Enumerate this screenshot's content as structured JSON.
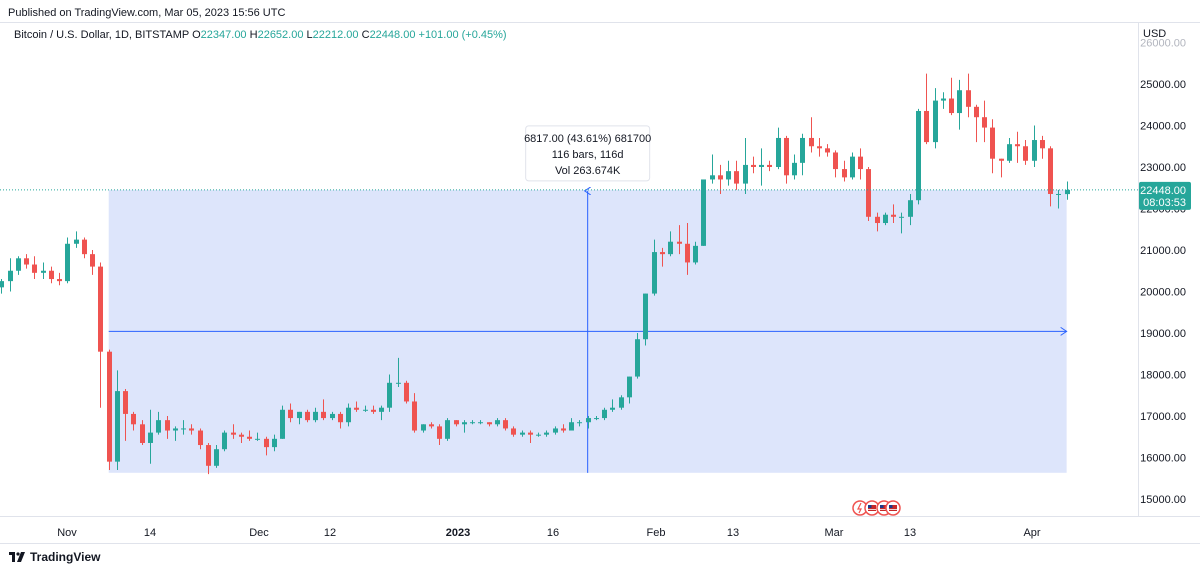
{
  "header": {
    "published": "Published on TradingView.com, Mar 05, 2023 15:56 UTC"
  },
  "legend": {
    "symbol": "Bitcoin / U.S. Dollar, 1D, BITSTAMP",
    "o_label": "O",
    "o": "22347.00",
    "h_label": "H",
    "h": "22652.00",
    "l_label": "L",
    "l": "22212.00",
    "c_label": "C",
    "c": "22448.00",
    "change": "+101.00 (+0.45%)"
  },
  "price_axis": {
    "currency": "USD",
    "ticks": [
      "26000.00",
      "25000.00",
      "24000.00",
      "23000.00",
      "22000.00",
      "21000.00",
      "20000.00",
      "19000.00",
      "18000.00",
      "17000.00",
      "16000.00",
      "15000.00"
    ],
    "last_price": "22448.00",
    "countdown": "08:03:53"
  },
  "time_axis": {
    "labels": [
      "Nov",
      "14",
      "Dec",
      "12",
      "2023",
      "16",
      "Feb",
      "13",
      "Mar",
      "13",
      "Apr"
    ]
  },
  "measure": {
    "line1": "6817.00 (43.61%) 681700",
    "line2": "116 bars, 116d",
    "line3": "Vol 263.674K"
  },
  "footer": {
    "brand": "TradingView"
  },
  "colors": {
    "up": "#26a69a",
    "down": "#ef5350",
    "measure_fill": "#d1dcf9",
    "measure_line": "#2962ff",
    "price_label_bg": "#26a69a"
  },
  "chart_data": {
    "type": "candlestick",
    "series_name": "",
    "y_axis_range": [
      15000,
      26000
    ],
    "grid": false,
    "candles": [
      {
        "date": "2022-10-26",
        "o": 19550,
        "h": 20400,
        "l": 19300,
        "c": 20100
      },
      {
        "date": "2022-10-27",
        "o": 20100,
        "h": 20300,
        "l": 19950,
        "c": 20250
      },
      {
        "date": "2022-10-28",
        "o": 20250,
        "h": 20800,
        "l": 20000,
        "c": 20500
      },
      {
        "date": "2022-10-29",
        "o": 20500,
        "h": 20850,
        "l": 20400,
        "c": 20800
      },
      {
        "date": "2022-10-30",
        "o": 20800,
        "h": 20900,
        "l": 20550,
        "c": 20650
      },
      {
        "date": "2022-10-31",
        "o": 20650,
        "h": 20850,
        "l": 20300,
        "c": 20450
      },
      {
        "date": "2022-11-01",
        "o": 20450,
        "h": 20700,
        "l": 20300,
        "c": 20500
      },
      {
        "date": "2022-11-02",
        "o": 20500,
        "h": 20600,
        "l": 20200,
        "c": 20300
      },
      {
        "date": "2022-11-03",
        "o": 20300,
        "h": 20450,
        "l": 20150,
        "c": 20250
      },
      {
        "date": "2022-11-04",
        "o": 20250,
        "h": 21300,
        "l": 20200,
        "c": 21150
      },
      {
        "date": "2022-11-05",
        "o": 21150,
        "h": 21450,
        "l": 21050,
        "c": 21250
      },
      {
        "date": "2022-11-06",
        "o": 21250,
        "h": 21300,
        "l": 20800,
        "c": 20900
      },
      {
        "date": "2022-11-07",
        "o": 20900,
        "h": 21000,
        "l": 20400,
        "c": 20600
      },
      {
        "date": "2022-11-08",
        "o": 20600,
        "h": 20700,
        "l": 17200,
        "c": 18550
      },
      {
        "date": "2022-11-09",
        "o": 18550,
        "h": 18600,
        "l": 15700,
        "c": 15900
      },
      {
        "date": "2022-11-10",
        "o": 15900,
        "h": 18100,
        "l": 15700,
        "c": 17600
      },
      {
        "date": "2022-11-11",
        "o": 17600,
        "h": 17650,
        "l": 16400,
        "c": 17050
      },
      {
        "date": "2022-11-12",
        "o": 17050,
        "h": 17100,
        "l": 16650,
        "c": 16800
      },
      {
        "date": "2022-11-13",
        "o": 16800,
        "h": 16900,
        "l": 16300,
        "c": 16350
      },
      {
        "date": "2022-11-14",
        "o": 16350,
        "h": 17150,
        "l": 15850,
        "c": 16600
      },
      {
        "date": "2022-11-15",
        "o": 16600,
        "h": 17100,
        "l": 16550,
        "c": 16900
      },
      {
        "date": "2022-11-16",
        "o": 16900,
        "h": 17000,
        "l": 16450,
        "c": 16650
      },
      {
        "date": "2022-11-17",
        "o": 16650,
        "h": 16750,
        "l": 16400,
        "c": 16700
      },
      {
        "date": "2022-11-18",
        "o": 16700,
        "h": 16900,
        "l": 16550,
        "c": 16700
      },
      {
        "date": "2022-11-19",
        "o": 16700,
        "h": 16800,
        "l": 16550,
        "c": 16650
      },
      {
        "date": "2022-11-20",
        "o": 16650,
        "h": 16700,
        "l": 16200,
        "c": 16300
      },
      {
        "date": "2022-11-21",
        "o": 16300,
        "h": 16350,
        "l": 15600,
        "c": 15800
      },
      {
        "date": "2022-11-22",
        "o": 15800,
        "h": 16300,
        "l": 15750,
        "c": 16200
      },
      {
        "date": "2022-11-23",
        "o": 16200,
        "h": 16650,
        "l": 16150,
        "c": 16600
      },
      {
        "date": "2022-11-24",
        "o": 16600,
        "h": 16800,
        "l": 16450,
        "c": 16550
      },
      {
        "date": "2022-11-25",
        "o": 16550,
        "h": 16600,
        "l": 16350,
        "c": 16500
      },
      {
        "date": "2022-11-26",
        "o": 16500,
        "h": 16650,
        "l": 16400,
        "c": 16450
      },
      {
        "date": "2022-11-27",
        "o": 16450,
        "h": 16600,
        "l": 16400,
        "c": 16450
      },
      {
        "date": "2022-11-28",
        "o": 16450,
        "h": 16500,
        "l": 16050,
        "c": 16250
      },
      {
        "date": "2022-11-29",
        "o": 16250,
        "h": 16550,
        "l": 16150,
        "c": 16450
      },
      {
        "date": "2022-11-30",
        "o": 16450,
        "h": 17250,
        "l": 16450,
        "c": 17150
      },
      {
        "date": "2022-12-01",
        "o": 17150,
        "h": 17300,
        "l": 16850,
        "c": 16950
      },
      {
        "date": "2022-12-02",
        "o": 16950,
        "h": 17100,
        "l": 16800,
        "c": 17100
      },
      {
        "date": "2022-12-03",
        "o": 17100,
        "h": 17150,
        "l": 16850,
        "c": 16900
      },
      {
        "date": "2022-12-04",
        "o": 16900,
        "h": 17200,
        "l": 16850,
        "c": 17100
      },
      {
        "date": "2022-12-05",
        "o": 17100,
        "h": 17400,
        "l": 16900,
        "c": 16950
      },
      {
        "date": "2022-12-06",
        "o": 16950,
        "h": 17100,
        "l": 16900,
        "c": 17050
      },
      {
        "date": "2022-12-07",
        "o": 17050,
        "h": 17100,
        "l": 16700,
        "c": 16850
      },
      {
        "date": "2022-12-08",
        "o": 16850,
        "h": 17300,
        "l": 16750,
        "c": 17200
      },
      {
        "date": "2022-12-09",
        "o": 17200,
        "h": 17350,
        "l": 17100,
        "c": 17150
      },
      {
        "date": "2022-12-10",
        "o": 17150,
        "h": 17250,
        "l": 17100,
        "c": 17150
      },
      {
        "date": "2022-12-11",
        "o": 17150,
        "h": 17250,
        "l": 17050,
        "c": 17100
      },
      {
        "date": "2022-12-12",
        "o": 17100,
        "h": 17250,
        "l": 16900,
        "c": 17200
      },
      {
        "date": "2022-12-13",
        "o": 17200,
        "h": 18000,
        "l": 17100,
        "c": 17800
      },
      {
        "date": "2022-12-14",
        "o": 17800,
        "h": 18400,
        "l": 17700,
        "c": 17800
      },
      {
        "date": "2022-12-15",
        "o": 17800,
        "h": 17850,
        "l": 17300,
        "c": 17350
      },
      {
        "date": "2022-12-16",
        "o": 17350,
        "h": 17550,
        "l": 16600,
        "c": 16650
      },
      {
        "date": "2022-12-17",
        "o": 16650,
        "h": 16800,
        "l": 16600,
        "c": 16800
      },
      {
        "date": "2022-12-18",
        "o": 16800,
        "h": 16850,
        "l": 16700,
        "c": 16750
      },
      {
        "date": "2022-12-19",
        "o": 16750,
        "h": 16800,
        "l": 16300,
        "c": 16450
      },
      {
        "date": "2022-12-20",
        "o": 16450,
        "h": 16950,
        "l": 16400,
        "c": 16900
      },
      {
        "date": "2022-12-21",
        "o": 16900,
        "h": 16900,
        "l": 16750,
        "c": 16800
      },
      {
        "date": "2022-12-22",
        "o": 16800,
        "h": 16900,
        "l": 16600,
        "c": 16850
      },
      {
        "date": "2022-12-23",
        "o": 16850,
        "h": 16900,
        "l": 16800,
        "c": 16850
      },
      {
        "date": "2022-12-24",
        "o": 16850,
        "h": 16900,
        "l": 16800,
        "c": 16850
      },
      {
        "date": "2022-12-25",
        "o": 16850,
        "h": 16850,
        "l": 16750,
        "c": 16800
      },
      {
        "date": "2022-12-26",
        "o": 16800,
        "h": 16950,
        "l": 16750,
        "c": 16900
      },
      {
        "date": "2022-12-27",
        "o": 16900,
        "h": 16950,
        "l": 16650,
        "c": 16700
      },
      {
        "date": "2022-12-28",
        "o": 16700,
        "h": 16750,
        "l": 16500,
        "c": 16550
      },
      {
        "date": "2022-12-29",
        "o": 16550,
        "h": 16650,
        "l": 16500,
        "c": 16600
      },
      {
        "date": "2022-12-30",
        "o": 16600,
        "h": 16650,
        "l": 16350,
        "c": 16550
      },
      {
        "date": "2022-12-31",
        "o": 16550,
        "h": 16600,
        "l": 16500,
        "c": 16550
      },
      {
        "date": "2023-01-01",
        "o": 16550,
        "h": 16650,
        "l": 16500,
        "c": 16600
      },
      {
        "date": "2023-01-02",
        "o": 16600,
        "h": 16750,
        "l": 16550,
        "c": 16700
      },
      {
        "date": "2023-01-03",
        "o": 16700,
        "h": 16800,
        "l": 16600,
        "c": 16650
      },
      {
        "date": "2023-01-04",
        "o": 16650,
        "h": 16950,
        "l": 16650,
        "c": 16850
      },
      {
        "date": "2023-01-05",
        "o": 16850,
        "h": 16900,
        "l": 16750,
        "c": 16850
      },
      {
        "date": "2023-01-06",
        "o": 16850,
        "h": 17000,
        "l": 16700,
        "c": 16950
      },
      {
        "date": "2023-01-07",
        "o": 16950,
        "h": 17000,
        "l": 16900,
        "c": 16950
      },
      {
        "date": "2023-01-08",
        "o": 16950,
        "h": 17200,
        "l": 16900,
        "c": 17150
      },
      {
        "date": "2023-01-09",
        "o": 17150,
        "h": 17400,
        "l": 17100,
        "c": 17200
      },
      {
        "date": "2023-01-10",
        "o": 17200,
        "h": 17500,
        "l": 17150,
        "c": 17450
      },
      {
        "date": "2023-01-11",
        "o": 17450,
        "h": 17950,
        "l": 17300,
        "c": 17950
      },
      {
        "date": "2023-01-12",
        "o": 17950,
        "h": 19000,
        "l": 17900,
        "c": 18850
      },
      {
        "date": "2023-01-13",
        "o": 18850,
        "h": 19950,
        "l": 18700,
        "c": 19950
      },
      {
        "date": "2023-01-14",
        "o": 19950,
        "h": 21250,
        "l": 19900,
        "c": 20950
      },
      {
        "date": "2023-01-15",
        "o": 20950,
        "h": 21050,
        "l": 20600,
        "c": 20900
      },
      {
        "date": "2023-01-16",
        "o": 20900,
        "h": 21450,
        "l": 20850,
        "c": 21200
      },
      {
        "date": "2023-01-17",
        "o": 21200,
        "h": 21600,
        "l": 20900,
        "c": 21150
      },
      {
        "date": "2023-01-18",
        "o": 21150,
        "h": 21650,
        "l": 20400,
        "c": 20700
      },
      {
        "date": "2023-01-19",
        "o": 20700,
        "h": 21200,
        "l": 20650,
        "c": 21100
      },
      {
        "date": "2023-01-20",
        "o": 21100,
        "h": 22700,
        "l": 21100,
        "c": 22700
      },
      {
        "date": "2023-01-21",
        "o": 22700,
        "h": 23300,
        "l": 22600,
        "c": 22800
      },
      {
        "date": "2023-01-22",
        "o": 22800,
        "h": 23050,
        "l": 22350,
        "c": 22700
      },
      {
        "date": "2023-01-23",
        "o": 22700,
        "h": 23150,
        "l": 22550,
        "c": 22900
      },
      {
        "date": "2023-01-24",
        "o": 22900,
        "h": 23150,
        "l": 22450,
        "c": 22600
      },
      {
        "date": "2023-01-25",
        "o": 22600,
        "h": 23700,
        "l": 22350,
        "c": 23050
      },
      {
        "date": "2023-01-26",
        "o": 23050,
        "h": 23250,
        "l": 22850,
        "c": 23000
      },
      {
        "date": "2023-01-27",
        "o": 23000,
        "h": 23450,
        "l": 22550,
        "c": 23050
      },
      {
        "date": "2023-01-28",
        "o": 23050,
        "h": 23150,
        "l": 22900,
        "c": 23000
      },
      {
        "date": "2023-01-29",
        "o": 23000,
        "h": 23950,
        "l": 22950,
        "c": 23700
      },
      {
        "date": "2023-01-30",
        "o": 23700,
        "h": 23750,
        "l": 22600,
        "c": 22800
      },
      {
        "date": "2023-01-31",
        "o": 22800,
        "h": 23300,
        "l": 22700,
        "c": 23100
      },
      {
        "date": "2023-02-01",
        "o": 23100,
        "h": 23800,
        "l": 22800,
        "c": 23700
      },
      {
        "date": "2023-02-02",
        "o": 23700,
        "h": 24200,
        "l": 23350,
        "c": 23500
      },
      {
        "date": "2023-02-03",
        "o": 23500,
        "h": 23700,
        "l": 23250,
        "c": 23450
      },
      {
        "date": "2023-02-04",
        "o": 23450,
        "h": 23550,
        "l": 23250,
        "c": 23350
      },
      {
        "date": "2023-02-05",
        "o": 23350,
        "h": 23400,
        "l": 22750,
        "c": 22950
      },
      {
        "date": "2023-02-06",
        "o": 22950,
        "h": 23150,
        "l": 22650,
        "c": 22750
      },
      {
        "date": "2023-02-07",
        "o": 22750,
        "h": 23350,
        "l": 22700,
        "c": 23250
      },
      {
        "date": "2023-02-08",
        "o": 23250,
        "h": 23450,
        "l": 22700,
        "c": 22950
      },
      {
        "date": "2023-02-09",
        "o": 22950,
        "h": 23000,
        "l": 21700,
        "c": 21800
      },
      {
        "date": "2023-02-10",
        "o": 21800,
        "h": 21900,
        "l": 21450,
        "c": 21650
      },
      {
        "date": "2023-02-11",
        "o": 21650,
        "h": 21900,
        "l": 21600,
        "c": 21850
      },
      {
        "date": "2023-02-12",
        "o": 21850,
        "h": 22100,
        "l": 21650,
        "c": 21800
      },
      {
        "date": "2023-02-13",
        "o": 21800,
        "h": 21900,
        "l": 21400,
        "c": 21800
      },
      {
        "date": "2023-02-14",
        "o": 21800,
        "h": 22350,
        "l": 21600,
        "c": 22200
      },
      {
        "date": "2023-02-15",
        "o": 22200,
        "h": 24400,
        "l": 22100,
        "c": 24350
      },
      {
        "date": "2023-02-16",
        "o": 24350,
        "h": 25250,
        "l": 23550,
        "c": 23600
      },
      {
        "date": "2023-02-17",
        "o": 23600,
        "h": 24900,
        "l": 23450,
        "c": 24600
      },
      {
        "date": "2023-02-18",
        "o": 24600,
        "h": 24800,
        "l": 24400,
        "c": 24650
      },
      {
        "date": "2023-02-19",
        "o": 24650,
        "h": 25150,
        "l": 24250,
        "c": 24300
      },
      {
        "date": "2023-02-20",
        "o": 24300,
        "h": 25100,
        "l": 23900,
        "c": 24850
      },
      {
        "date": "2023-02-21",
        "o": 24850,
        "h": 25250,
        "l": 24200,
        "c": 24450
      },
      {
        "date": "2023-02-22",
        "o": 24450,
        "h": 24500,
        "l": 23600,
        "c": 24200
      },
      {
        "date": "2023-02-23",
        "o": 24200,
        "h": 24600,
        "l": 23600,
        "c": 23950
      },
      {
        "date": "2023-02-24",
        "o": 23950,
        "h": 24150,
        "l": 22850,
        "c": 23200
      },
      {
        "date": "2023-02-25",
        "o": 23200,
        "h": 23200,
        "l": 22750,
        "c": 23150
      },
      {
        "date": "2023-02-26",
        "o": 23150,
        "h": 23700,
        "l": 23100,
        "c": 23550
      },
      {
        "date": "2023-02-27",
        "o": 23550,
        "h": 23850,
        "l": 23100,
        "c": 23500
      },
      {
        "date": "2023-02-28",
        "o": 23500,
        "h": 23650,
        "l": 23050,
        "c": 23150
      },
      {
        "date": "2023-03-01",
        "o": 23150,
        "h": 24000,
        "l": 23000,
        "c": 23650
      },
      {
        "date": "2023-03-02",
        "o": 23650,
        "h": 23750,
        "l": 23200,
        "c": 23450
      },
      {
        "date": "2023-03-03",
        "o": 23450,
        "h": 23500,
        "l": 22050,
        "c": 22350
      },
      {
        "date": "2023-03-04",
        "o": 22350,
        "h": 22450,
        "l": 22000,
        "c": 22350
      },
      {
        "date": "2023-03-05",
        "o": 22347,
        "h": 22652,
        "l": 22212,
        "c": 22448
      }
    ],
    "measure_range": {
      "start_date": "2022-11-09",
      "end_date": "2023-03-05",
      "low": 15631,
      "high": 22448
    }
  }
}
